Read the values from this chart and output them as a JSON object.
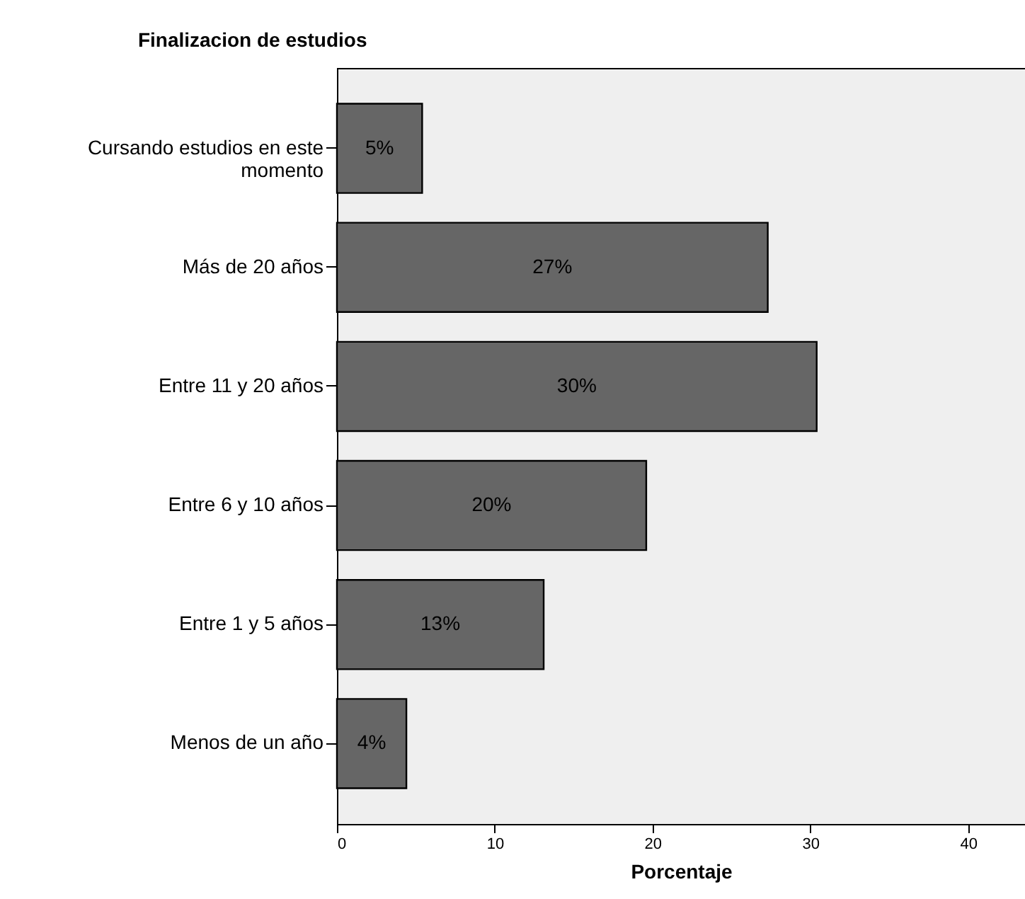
{
  "chart_data": {
    "type": "bar",
    "orientation": "horizontal",
    "title": "Finalizacion de estudios",
    "xlabel": "Porcentaje",
    "categories": [
      "Cursando estudios en este momento",
      "Más de 20 años",
      "Entre 11 y 20 años",
      "Entre 6 y 10 años",
      "Entre 1 y 5 años",
      "Menos de un año"
    ],
    "values": [
      5.4,
      27.3,
      30.4,
      19.6,
      13.1,
      4.4
    ],
    "value_labels": [
      "5%",
      "27%",
      "30%",
      "20%",
      "13%",
      "4%"
    ],
    "color": "#666666",
    "xlim": [
      0,
      43.6
    ],
    "xticks": [
      0,
      10,
      20,
      30,
      40
    ],
    "grid": false
  }
}
